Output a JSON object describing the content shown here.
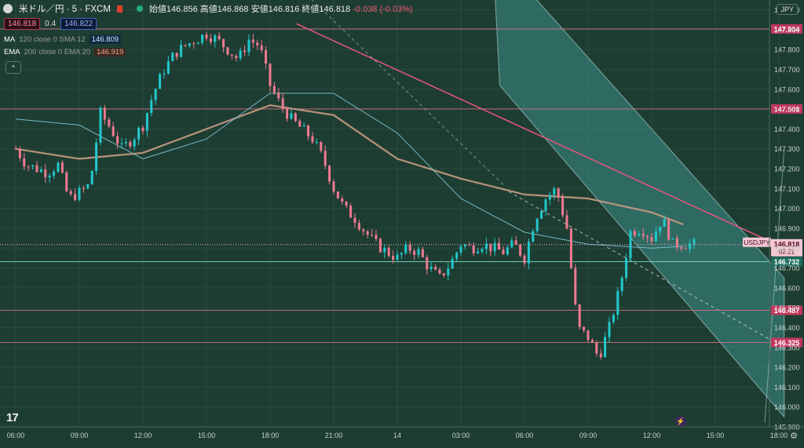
{
  "header": {
    "symbol": "米ドル／円 · 5 · FXCM",
    "ohlc": {
      "open_label": "始値",
      "open": "146.856",
      "high_label": "高値",
      "high": "146.868",
      "low_label": "安値",
      "low": "146.816",
      "close_label": "終値",
      "close": "146.818",
      "change": "-0.038 (-0.03%)"
    },
    "bid": "146.818",
    "spread": "0.4",
    "ask": "146.822",
    "indicators": [
      {
        "name": "MA",
        "params": "120 close 0 SMA 12",
        "value": "146.809"
      },
      {
        "name": "EMA",
        "params": "200 close 0 EMA 20",
        "value": "146.919"
      }
    ],
    "collapse_glyph": "^"
  },
  "currency": "JPY",
  "logo_text": "17",
  "colors": {
    "background": "#1e3d32",
    "channel_fill": "#3e8f8a",
    "up_candle": "#22c8cc",
    "down_candle": "#f07a92",
    "resistance": "#e8567d",
    "level_line": "#d9708a",
    "ema": "#c99b84",
    "sma": "#7ec4d4",
    "current_price_tag": "#f0b8c6"
  },
  "chart_data": {
    "type": "candlestick",
    "title": "米ドル／円 · 5 · FXCM",
    "y_ticks": [
      "148.000",
      "147.900",
      "147.800",
      "147.700",
      "147.600",
      "147.500",
      "147.400",
      "147.300",
      "147.200",
      "147.100",
      "147.000",
      "146.900",
      "146.800",
      "146.700",
      "146.600",
      "146.500",
      "146.400",
      "146.300",
      "146.200",
      "146.100",
      "146.000",
      "145.900"
    ],
    "ylim": [
      145.9,
      148.03
    ],
    "x_ticks": [
      "06:00",
      "09:00",
      "12:00",
      "15:00",
      "18:00",
      "21:00",
      "14",
      "03:00",
      "06:00",
      "09:00",
      "12:00",
      "15:00",
      "18:00"
    ],
    "price_levels": [
      {
        "label": "147.904",
        "value": 147.904,
        "kind": "pink"
      },
      {
        "label": "147.501",
        "value": 147.501,
        "kind": "pink"
      },
      {
        "label": "146.732",
        "value": 146.732,
        "kind": "teal"
      },
      {
        "label": "146.487",
        "value": 146.487,
        "kind": "pink"
      },
      {
        "label": "146.325",
        "value": 146.325,
        "kind": "pink"
      }
    ],
    "current_price": {
      "symbol": "USDJPY",
      "price": "146.818",
      "countdown": "02:21",
      "value": 146.818
    },
    "channel": {
      "upper": [
        {
          "t": "04:30",
          "v": 148.3
        },
        {
          "t": "19:30",
          "v": 148.08
        },
        {
          "t": "12:10",
          "v": 146.92
        },
        {
          "t": "18:15",
          "v": 146.65
        }
      ],
      "lower": [
        {
          "t": "04:50",
          "v": 147.62
        },
        {
          "t": "18:15",
          "v": 145.95
        }
      ],
      "mid_dashed": [
        {
          "t": "05:00",
          "v": 147.1
        },
        {
          "t": "18:15",
          "v": 146.3
        }
      ]
    },
    "trendlines": [
      {
        "name": "resistance",
        "points": [
          {
            "t": "19:15",
            "v": 147.93
          },
          {
            "t": "17:40",
            "v": 146.83
          }
        ]
      },
      {
        "name": "rising-dashed",
        "points": [
          {
            "t": "05:00",
            "v": 147.12
          },
          {
            "t": "19:30",
            "v": 148.1
          }
        ]
      },
      {
        "name": "rising-thin",
        "points": [
          {
            "t": "17:20",
            "v": 145.92
          },
          {
            "t": "18:15",
            "v": 147.3
          }
        ]
      }
    ],
    "series": [
      {
        "name": "close",
        "x": [
          "06:00",
          "06:30",
          "07:00",
          "07:30",
          "08:00",
          "08:30",
          "09:00",
          "09:30",
          "10:00",
          "10:30",
          "11:00",
          "11:30",
          "12:00",
          "12:30",
          "13:00",
          "13:30",
          "14:00",
          "14:30",
          "15:00",
          "15:30",
          "16:00",
          "16:30",
          "17:00",
          "17:30",
          "18:00",
          "18:30",
          "19:00",
          "19:30",
          "20:00",
          "20:30",
          "21:00",
          "21:30",
          "22:00",
          "22:30",
          "23:00",
          "23:30",
          "00:00",
          "00:30",
          "01:00",
          "01:30",
          "02:00",
          "02:30",
          "03:00",
          "03:30",
          "04:00",
          "04:30",
          "05:00",
          "05:30",
          "06:00",
          "06:30",
          "07:00",
          "07:30",
          "08:00",
          "08:30",
          "09:00",
          "09:30",
          "10:00",
          "10:30",
          "11:00",
          "11:30",
          "12:00",
          "12:30",
          "13:00",
          "13:30",
          "14:00"
        ],
        "values": [
          147.3,
          147.22,
          147.2,
          147.18,
          147.22,
          147.05,
          147.08,
          147.12,
          147.48,
          147.4,
          147.3,
          147.35,
          147.42,
          147.58,
          147.7,
          147.78,
          147.82,
          147.85,
          147.88,
          147.85,
          147.8,
          147.75,
          147.85,
          147.82,
          147.62,
          147.52,
          147.45,
          147.4,
          147.35,
          147.25,
          147.1,
          147.0,
          146.95,
          146.88,
          146.82,
          146.78,
          146.75,
          146.8,
          146.78,
          146.7,
          146.65,
          146.72,
          146.82,
          146.8,
          146.82,
          146.8,
          146.78,
          146.82,
          146.75,
          146.95,
          147.05,
          147.1,
          146.9,
          146.4,
          146.35,
          146.25,
          146.4,
          146.6,
          146.88,
          146.9,
          146.85,
          146.95,
          146.82,
          146.82,
          146.818
        ]
      },
      {
        "name": "EMA 200",
        "x": [
          "06:00",
          "09:00",
          "12:00",
          "15:00",
          "18:00",
          "21:00",
          "00:00",
          "03:00",
          "06:00",
          "09:00",
          "12:00",
          "13:30"
        ],
        "values": [
          147.3,
          147.25,
          147.28,
          147.4,
          147.52,
          147.47,
          147.25,
          147.15,
          147.07,
          147.05,
          146.98,
          146.919
        ]
      },
      {
        "name": "SMA 120",
        "x": [
          "06:00",
          "09:00",
          "12:00",
          "15:00",
          "18:00",
          "21:00",
          "00:00",
          "03:00",
          "06:00",
          "09:00",
          "12:00",
          "13:30"
        ],
        "values": [
          147.45,
          147.42,
          147.25,
          147.35,
          147.58,
          147.58,
          147.38,
          147.05,
          146.88,
          146.82,
          146.8,
          146.809
        ]
      }
    ],
    "grid": true,
    "legend_position": "top-left"
  }
}
